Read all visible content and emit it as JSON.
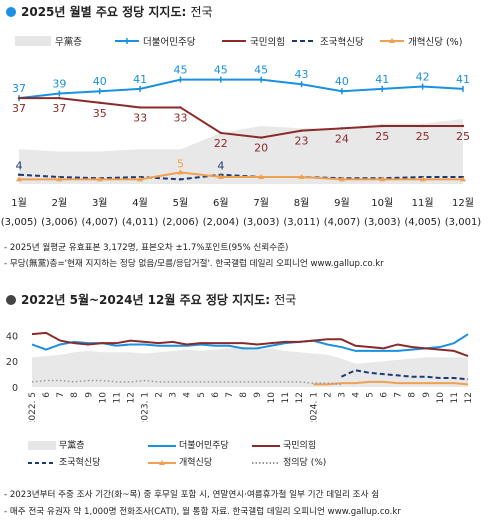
{
  "section1": {
    "title": "2025년 월별 주요 정당 지지도:",
    "subtitle": "전국",
    "dot_color": "#1a90e0"
  },
  "section2": {
    "title": "2022년 5월~2024년 12월 주요 정당 지지도:",
    "subtitle": "전국",
    "dot_color": "#444444"
  },
  "notes1": [
    "- 2025년 월평균 유효표본 3,172명, 표본오차 ±1.7%포인트(95% 신뢰수준)",
    "- 무당(無黨)층='현재 지지하는 정당 없음/모름/응답거절'. 한국갤럽 데일리 오피니언 www.gallup.co.kr"
  ],
  "notes2": [
    "- 2023년부터 주중 조사 기간(화~목) 중 후무일 포함 시, 연말연시·여름휴가철 일부 기간 데일리 조사 쉼",
    "- 매주 전국 유권자 약 1,000명 전화조사(CATI), 월 통합 자료. 한국갤럽 데일리 오피니언 www.gallup.co.kr"
  ],
  "legend2": {
    "none": "무黨층",
    "dem": "더불어민주당",
    "ppp": "국민의힘",
    "rebuild": "조국혁신당",
    "reform": "개혁신당",
    "justice": "정의당 (%)"
  },
  "chart_data": [
    {
      "type": "line",
      "title": "2025년 월별 주요 정당 지지도: 전국",
      "categories": [
        "1월",
        "2월",
        "3월",
        "4월",
        "5월",
        "6월",
        "7월",
        "8월",
        "9월",
        "10월",
        "11월",
        "12월"
      ],
      "sample_sizes": [
        "(3,005)",
        "(3,006)",
        "(4,007)",
        "(4,011)",
        "(2,006)",
        "(2,004)",
        "(3,003)",
        "(3,011)",
        "(4,007)",
        "(3,003)",
        "(4,005)",
        "(3,001)"
      ],
      "legend": [
        "무黨층",
        "더불어민주당",
        "국민의힘",
        "조국혁신당",
        "개혁신당 (%)"
      ],
      "series": [
        {
          "name": "무黨층",
          "color": "#e8e8e8",
          "style": "area",
          "values": [
            15,
            14,
            14,
            15,
            15,
            22,
            25,
            24,
            24,
            26,
            26,
            28
          ]
        },
        {
          "name": "더불어민주당",
          "color": "#1a90e0",
          "style": "solid",
          "values": [
            37,
            39,
            40,
            41,
            45,
            45,
            45,
            43,
            40,
            41,
            42,
            41
          ]
        },
        {
          "name": "국민의힘",
          "color": "#8b2a2a",
          "style": "solid",
          "values": [
            37,
            37,
            35,
            33,
            33,
            22,
            20,
            23,
            24,
            25,
            25,
            25
          ]
        },
        {
          "name": "조국혁신당",
          "color": "#1f3a73",
          "style": "dashed",
          "values": [
            4,
            3,
            2.5,
            3,
            2,
            4,
            3,
            3,
            2.5,
            2.5,
            3,
            3
          ]
        },
        {
          "name": "개혁신당",
          "color": "#f0a050",
          "style": "solid",
          "values": [
            2,
            2,
            2,
            2,
            5,
            3,
            3,
            3,
            2,
            2,
            2,
            2
          ]
        }
      ],
      "data_labels": {
        "더불어민주당": [
          "37",
          "39",
          "40",
          "41",
          "45",
          "45",
          "45",
          "43",
          "40",
          "41",
          "42",
          "41"
        ],
        "국민의힘": [
          "37",
          "37",
          "35",
          "33",
          "33",
          "22",
          "20",
          "23",
          "24",
          "25",
          "25",
          "25"
        ],
        "조국혁신당": [
          "4",
          "",
          "",
          "",
          "",
          "4",
          "",
          "",
          "",
          "",
          "",
          ""
        ],
        "개혁신당": [
          "",
          "",
          "",
          "",
          "5",
          "",
          "",
          "",
          "",
          "",
          "",
          ""
        ]
      },
      "ylim": [
        0,
        50
      ],
      "grid": false,
      "legend_position": "top"
    },
    {
      "type": "line",
      "title": "2022년 5월~2024년 12월 주요 정당 지지도: 전국",
      "x_ticks": [
        "2022. 5",
        "6",
        "7",
        "8",
        "9",
        "10",
        "11",
        "12",
        "2023. 1",
        "2",
        "3",
        "4",
        "5",
        "6",
        "7",
        "8",
        "9",
        "10",
        "11",
        "12",
        "2024. 1",
        "2",
        "3",
        "4",
        "5",
        "6",
        "7",
        "8",
        "9",
        "10",
        "11",
        "12"
      ],
      "y_ticks": [
        "0",
        "20",
        "40"
      ],
      "ylim": [
        0,
        45
      ],
      "grid": false,
      "legend_position": "bottom",
      "legend": [
        "무黨층",
        "더불어민주당",
        "국민의힘",
        "조국혁신당",
        "개혁신당",
        "정의당 (%)"
      ],
      "series": [
        {
          "name": "무黨층",
          "color": "#e8e8e8",
          "style": "area",
          "values": [
            23,
            24,
            25,
            27,
            28,
            27,
            27,
            27,
            26,
            27,
            28,
            29,
            28,
            29,
            30,
            31,
            29,
            30,
            28,
            27,
            26,
            25,
            22,
            18,
            19,
            20,
            21,
            22,
            23,
            23,
            23,
            23
          ]
        },
        {
          "name": "더불어민주당",
          "color": "#1a90e0",
          "style": "solid",
          "values": [
            33,
            29,
            33,
            35,
            34,
            34,
            32,
            33,
            33,
            32,
            32,
            32,
            33,
            32,
            32,
            30,
            30,
            32,
            34,
            35,
            36,
            33,
            31,
            28,
            28,
            28,
            28,
            29,
            30,
            31,
            34,
            41
          ]
        },
        {
          "name": "국민의힘",
          "color": "#8b2a2a",
          "style": "solid",
          "values": [
            41,
            42,
            36,
            34,
            33,
            34,
            34,
            36,
            35,
            34,
            35,
            33,
            34,
            34,
            34,
            34,
            33,
            34,
            35,
            35,
            36,
            37,
            37,
            32,
            31,
            30,
            33,
            31,
            30,
            29,
            28,
            24
          ]
        },
        {
          "name": "조국혁신당",
          "color": "#1f3a73",
          "style": "dashed",
          "values": [
            null,
            null,
            null,
            null,
            null,
            null,
            null,
            null,
            null,
            null,
            null,
            null,
            null,
            null,
            null,
            null,
            null,
            null,
            null,
            null,
            null,
            null,
            8,
            13,
            11,
            10,
            9,
            8,
            8,
            7,
            7,
            6
          ]
        },
        {
          "name": "개혁신당",
          "color": "#f0a050",
          "style": "solid",
          "values": [
            null,
            null,
            null,
            null,
            null,
            null,
            null,
            null,
            null,
            null,
            null,
            null,
            null,
            null,
            null,
            null,
            null,
            null,
            null,
            null,
            2,
            2,
            3,
            3,
            4,
            4,
            3,
            3,
            3,
            3,
            3,
            2
          ]
        },
        {
          "name": "정의당",
          "color": "#999999",
          "style": "dotted",
          "values": [
            4,
            5,
            5,
            4,
            5,
            5,
            4,
            4,
            5,
            4,
            4,
            4,
            4,
            4,
            4,
            4,
            4,
            4,
            4,
            4,
            3,
            3,
            2,
            null,
            null,
            null,
            null,
            null,
            null,
            null,
            null,
            null
          ]
        }
      ]
    }
  ]
}
